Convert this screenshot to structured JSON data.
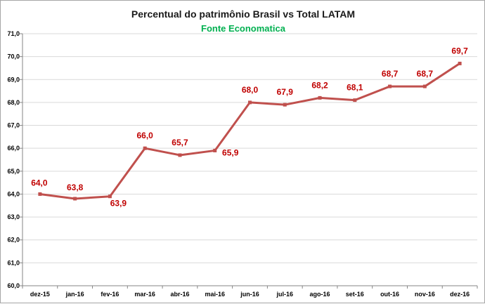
{
  "colors": {
    "series": "#c0504d",
    "label": "#c00000",
    "subtitle": "#00b050",
    "grid": "#d9d9d9",
    "axis": "#868686"
  },
  "chart_data": {
    "type": "line",
    "title": "Percentual do patrimônio Brasil vs Total LATAM",
    "subtitle": "Fonte Economatica",
    "categories": [
      "dez-15",
      "jan-16",
      "fev-16",
      "mar-16",
      "abr-16",
      "mai-16",
      "jun-16",
      "jul-16",
      "ago-16",
      "set-16",
      "out-16",
      "nov-16",
      "dez-16"
    ],
    "series": [
      {
        "values": [
          64.0,
          63.8,
          63.9,
          66.0,
          65.7,
          65.9,
          68.0,
          67.9,
          68.2,
          68.1,
          68.7,
          68.7,
          69.7
        ],
        "data_labels": [
          "64,0",
          "63,8",
          "63,9",
          "66,0",
          "65,7",
          "65,9",
          "68,0",
          "67,9",
          "68,2",
          "68,1",
          "68,7",
          "68,7",
          "69,7"
        ]
      }
    ],
    "ylim": [
      60.0,
      71.0
    ],
    "y_ticks": [
      "60,0",
      "61,0",
      "62,0",
      "63,0",
      "64,0",
      "65,0",
      "66,0",
      "67,0",
      "68,0",
      "69,0",
      "70,0",
      "71,0"
    ],
    "grid": true,
    "marker": "square"
  }
}
